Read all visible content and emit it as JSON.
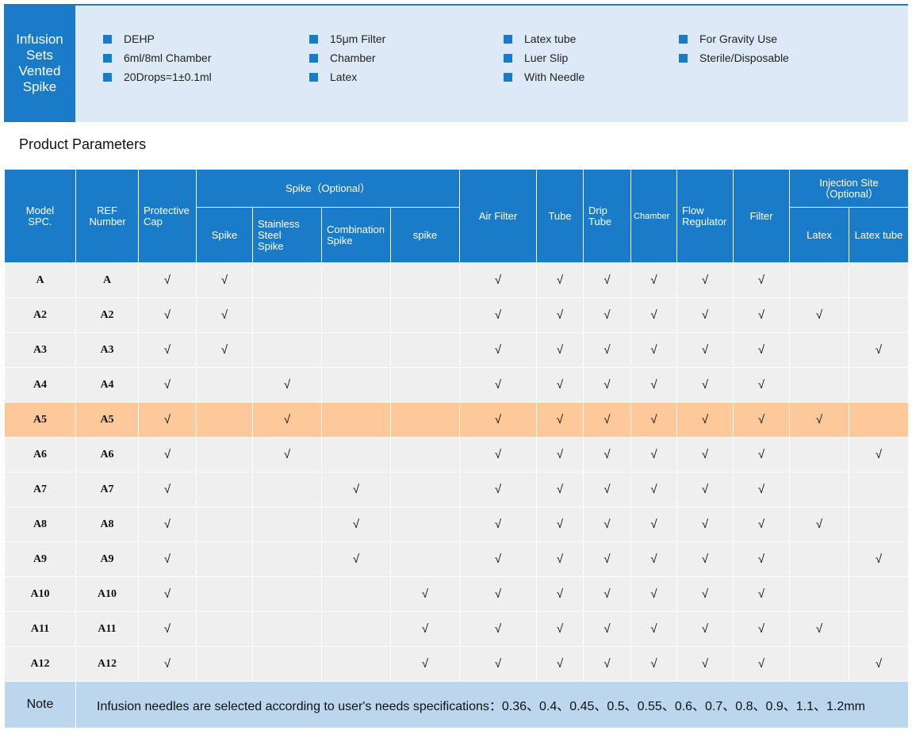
{
  "banner": {
    "title": "Infusion Sets Vented Spike",
    "features": [
      [
        "DEHP",
        "6ml/8ml Chamber",
        "20Drops=1±0.1ml"
      ],
      [
        "15μm Filter",
        "Chamber",
        "Latex"
      ],
      [
        "Latex tube",
        "Luer Slip",
        "With Needle"
      ],
      [
        "For Gravity Use",
        "Sterile/Disposable"
      ]
    ]
  },
  "section_title": "Product Parameters",
  "table": {
    "header": [
      {
        "label": "Model SPC."
      },
      {
        "label": "REF Number"
      },
      {
        "label": "Protective Cap"
      },
      {
        "label": "Spike（Optional）",
        "sub": [
          "Spike",
          "Stainless Steel Spike",
          "Combination Spike",
          "spike"
        ]
      },
      {
        "label": "Air Filter"
      },
      {
        "label": "Tube"
      },
      {
        "label": "Drip Tube"
      },
      {
        "label": "Chamber"
      },
      {
        "label": "Flow Regulator"
      },
      {
        "label": "Filter"
      },
      {
        "label": "Injection Site（Optional）",
        "sub": [
          "Latex",
          "Latex tube"
        ]
      }
    ],
    "rows": [
      {
        "cells": [
          "A",
          "A",
          "√",
          "√",
          null,
          null,
          null,
          "√",
          "√",
          "√",
          "√",
          "√",
          "√",
          null,
          null
        ]
      },
      {
        "cells": [
          "A2",
          "A2",
          "√",
          "√",
          null,
          null,
          null,
          "√",
          "√",
          "√",
          "√",
          "√",
          "√",
          "√",
          null
        ]
      },
      {
        "cells": [
          "A3",
          "A3",
          "√",
          "√",
          null,
          null,
          null,
          "√",
          "√",
          "√",
          "√",
          "√",
          "√",
          null,
          "√"
        ]
      },
      {
        "cells": [
          "A4",
          "A4",
          "√",
          null,
          "√",
          null,
          null,
          "√",
          "√",
          "√",
          "√",
          "√",
          "√",
          null,
          null
        ]
      },
      {
        "cells": [
          "A5",
          "A5",
          "√",
          null,
          "√",
          null,
          null,
          "√",
          "√",
          "√",
          "√",
          "√",
          "√",
          "√",
          null
        ],
        "highlight": true
      },
      {
        "cells": [
          "A6",
          "A6",
          "√",
          null,
          "√",
          null,
          null,
          "√",
          "√",
          "√",
          "√",
          "√",
          "√",
          null,
          "√"
        ]
      },
      {
        "cells": [
          "A7",
          "A7",
          "√",
          null,
          null,
          "√",
          null,
          "√",
          "√",
          "√",
          "√",
          "√",
          "√",
          null,
          null
        ]
      },
      {
        "cells": [
          "A8",
          "A8",
          "√",
          null,
          null,
          "√",
          null,
          "√",
          "√",
          "√",
          "√",
          "√",
          "√",
          "√",
          null
        ]
      },
      {
        "cells": [
          "A9",
          "A9",
          "√",
          null,
          null,
          "√",
          null,
          "√",
          "√",
          "√",
          "√",
          "√",
          "√",
          null,
          "√"
        ]
      },
      {
        "cells": [
          "A10",
          "A10",
          "√",
          null,
          null,
          null,
          "√",
          "√",
          "√",
          "√",
          "√",
          "√",
          "√",
          null,
          null
        ]
      },
      {
        "cells": [
          "A11",
          "A11",
          "√",
          null,
          null,
          null,
          "√",
          "√",
          "√",
          "√",
          "√",
          "√",
          "√",
          "√",
          null
        ]
      },
      {
        "cells": [
          "A12",
          "A12",
          "√",
          null,
          null,
          null,
          "√",
          "√",
          "√",
          "√",
          "√",
          "√",
          "√",
          null,
          "√"
        ]
      }
    ],
    "note": {
      "label": "Note",
      "text": "Infusion needles are selected according to user's needs specifications：0.36、0.4、0.45、0.5、0.55、0.6、0.7、0.8、0.9、1.1、1.2mm"
    }
  }
}
